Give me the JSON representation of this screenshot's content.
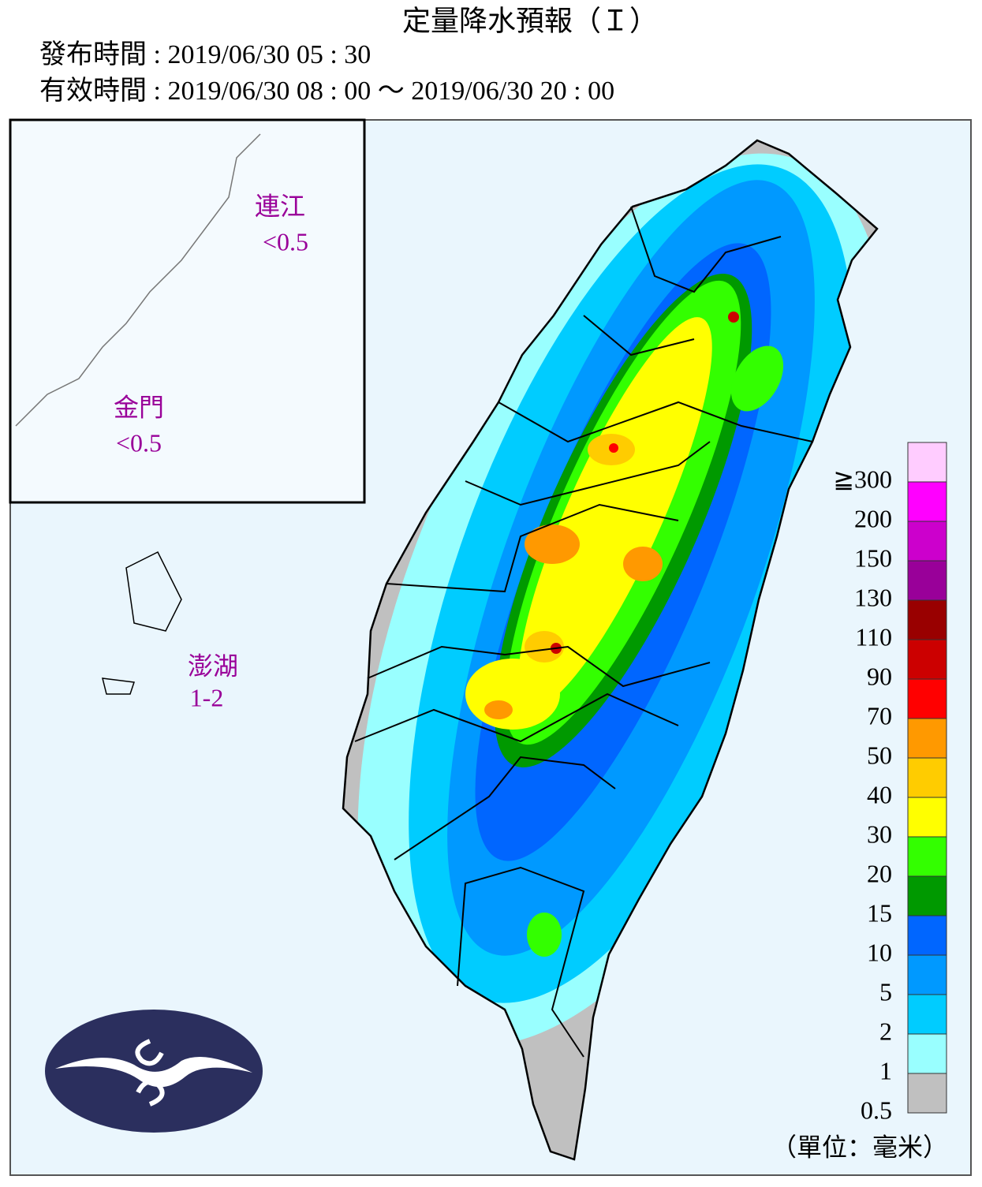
{
  "header": {
    "title": "定量降水預報（Ｉ）",
    "issued": "發布時間 : 2019/06/30 05 : 30",
    "valid": "有效時間 : 2019/06/30 08 : 00 ～ 2019/06/30 20 : 00"
  },
  "inset": [
    {
      "name": "連江",
      "amount": "<0.5"
    },
    {
      "name": "金門",
      "amount": "<0.5"
    }
  ],
  "islands": [
    {
      "name": "澎湖",
      "amount": "1-2"
    }
  ],
  "legend": {
    "levels": [
      {
        "label": "≧300",
        "color": "#ffccff"
      },
      {
        "label": "200",
        "color": "#ff00ff"
      },
      {
        "label": "150",
        "color": "#cc00cc"
      },
      {
        "label": "130",
        "color": "#990099"
      },
      {
        "label": "110",
        "color": "#990000"
      },
      {
        "label": "90",
        "color": "#cc0000"
      },
      {
        "label": "70",
        "color": "#ff0000"
      },
      {
        "label": "50",
        "color": "#ff9900"
      },
      {
        "label": "40",
        "color": "#ffcc00"
      },
      {
        "label": "30",
        "color": "#ffff00"
      },
      {
        "label": "20",
        "color": "#33ff00"
      },
      {
        "label": "15",
        "color": "#009900"
      },
      {
        "label": "10",
        "color": "#0066ff"
      },
      {
        "label": "5",
        "color": "#0099ff"
      },
      {
        "label": "2",
        "color": "#00ccff"
      },
      {
        "label": "1",
        "color": "#99ffff"
      },
      {
        "label": "0.5",
        "color": "#c0c0c0"
      }
    ],
    "unit": "（單位：毫米）"
  }
}
